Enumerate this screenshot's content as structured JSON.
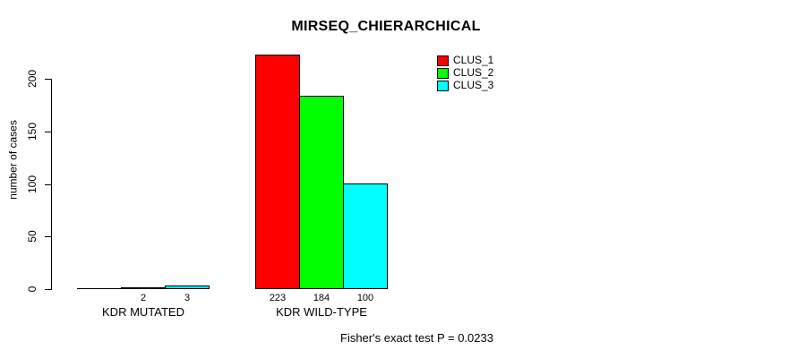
{
  "chart_data": {
    "type": "bar",
    "title": "MIRSEQ_CHIERARCHICAL",
    "ylabel": "number of cases",
    "xlabel": "",
    "categories": [
      "KDR MUTATED",
      "KDR WILD-TYPE"
    ],
    "series": [
      {
        "name": "CLUS_1",
        "color": "#ff0000",
        "values": [
          0,
          223
        ],
        "value_labels": [
          "",
          "223"
        ]
      },
      {
        "name": "CLUS_2",
        "color": "#00ff00",
        "values": [
          2,
          184
        ],
        "value_labels": [
          "2",
          "184"
        ]
      },
      {
        "name": "CLUS_3",
        "color": "#00ffff",
        "values": [
          3,
          100
        ],
        "value_labels": [
          "3",
          "100"
        ]
      }
    ],
    "yticks": [
      0,
      50,
      100,
      150,
      200
    ],
    "ylim": [
      0,
      223
    ],
    "grid": false,
    "legend": {
      "position": "top-right",
      "entries": [
        "CLUS_1",
        "CLUS_2",
        "CLUS_3"
      ]
    },
    "annotation": "Fisher's exact test P = 0.0233"
  },
  "colors": {
    "background": "#ffffff",
    "text": "#000000",
    "axis": "#000000"
  }
}
